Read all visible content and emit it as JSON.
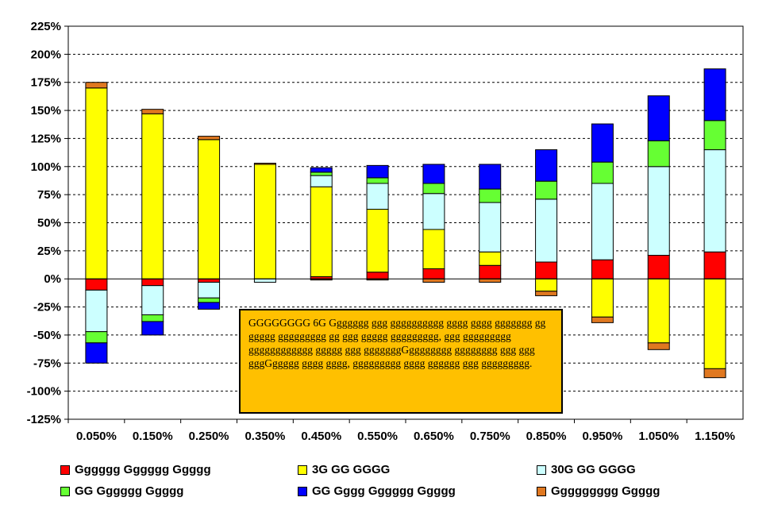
{
  "chart_data": {
    "type": "bar",
    "stacked": true,
    "categories": [
      "0.050%",
      "0.150%",
      "0.250%",
      "0.350%",
      "0.450%",
      "0.550%",
      "0.650%",
      "0.750%",
      "0.850%",
      "0.950%",
      "1.050%",
      "1.150%"
    ],
    "ylim": [
      -125,
      225
    ],
    "yticks": [
      -125,
      -100,
      -75,
      -50,
      -25,
      0,
      25,
      50,
      75,
      100,
      125,
      150,
      175,
      200,
      225
    ],
    "ytick_labels": [
      "-125%",
      "-100%",
      "-75%",
      "-50%",
      "-25%",
      "0%",
      "25%",
      "50%",
      "75%",
      "100%",
      "125%",
      "150%",
      "175%",
      "200%",
      "225%"
    ],
    "grid": "horizontal-dashed",
    "legend_position": "bottom",
    "series": [
      {
        "name": "Gggggg Gggggg Ggggg",
        "color": "#ff0000",
        "values": [
          -10,
          -6,
          -3,
          0,
          2,
          6,
          9,
          12,
          15,
          17,
          21,
          24
        ]
      },
      {
        "name": "3G GG GGGG",
        "color": "#ffff00",
        "values": [
          170,
          147,
          124,
          102,
          80,
          56,
          35,
          12,
          -11,
          -34,
          -57,
          -80
        ]
      },
      {
        "name": "30G GG GGGG",
        "color": "#ccffff",
        "values": [
          -37,
          -26,
          -14,
          -3,
          10,
          23,
          32,
          44,
          56,
          68,
          79,
          91
        ]
      },
      {
        "name": "GG Gggggg Ggggg",
        "color": "#66ff33",
        "values": [
          -10,
          -6,
          -4,
          0,
          3,
          5,
          9,
          12,
          16,
          19,
          23,
          26
        ]
      },
      {
        "name": "GG Gggg Gggggg Ggggg",
        "color": "#0000ff",
        "values": [
          -18,
          -12,
          -6,
          0,
          4,
          11,
          17,
          22,
          28,
          34,
          40,
          46
        ]
      },
      {
        "name": "Ggggggggg Ggggg",
        "color": "#e07820",
        "values": [
          5,
          4,
          3,
          1,
          -1,
          -1,
          -3,
          -3,
          -4,
          -5,
          -6,
          -8
        ]
      }
    ]
  },
  "annotation": {
    "text": "GGGGGGGG 6G Ggggggg ggg gggggggggg gggg gggg ggggggg gg ggggg ggggggggg gg ggg ggggg ggggggggg, ggg ggggggggg gggggggggggg ggggg ggg gggggggGgggggggg gggggggg ggg ggg gggGggggg gggg gggg, ggggggggg gggg gggggg ggg ggggggggg."
  }
}
